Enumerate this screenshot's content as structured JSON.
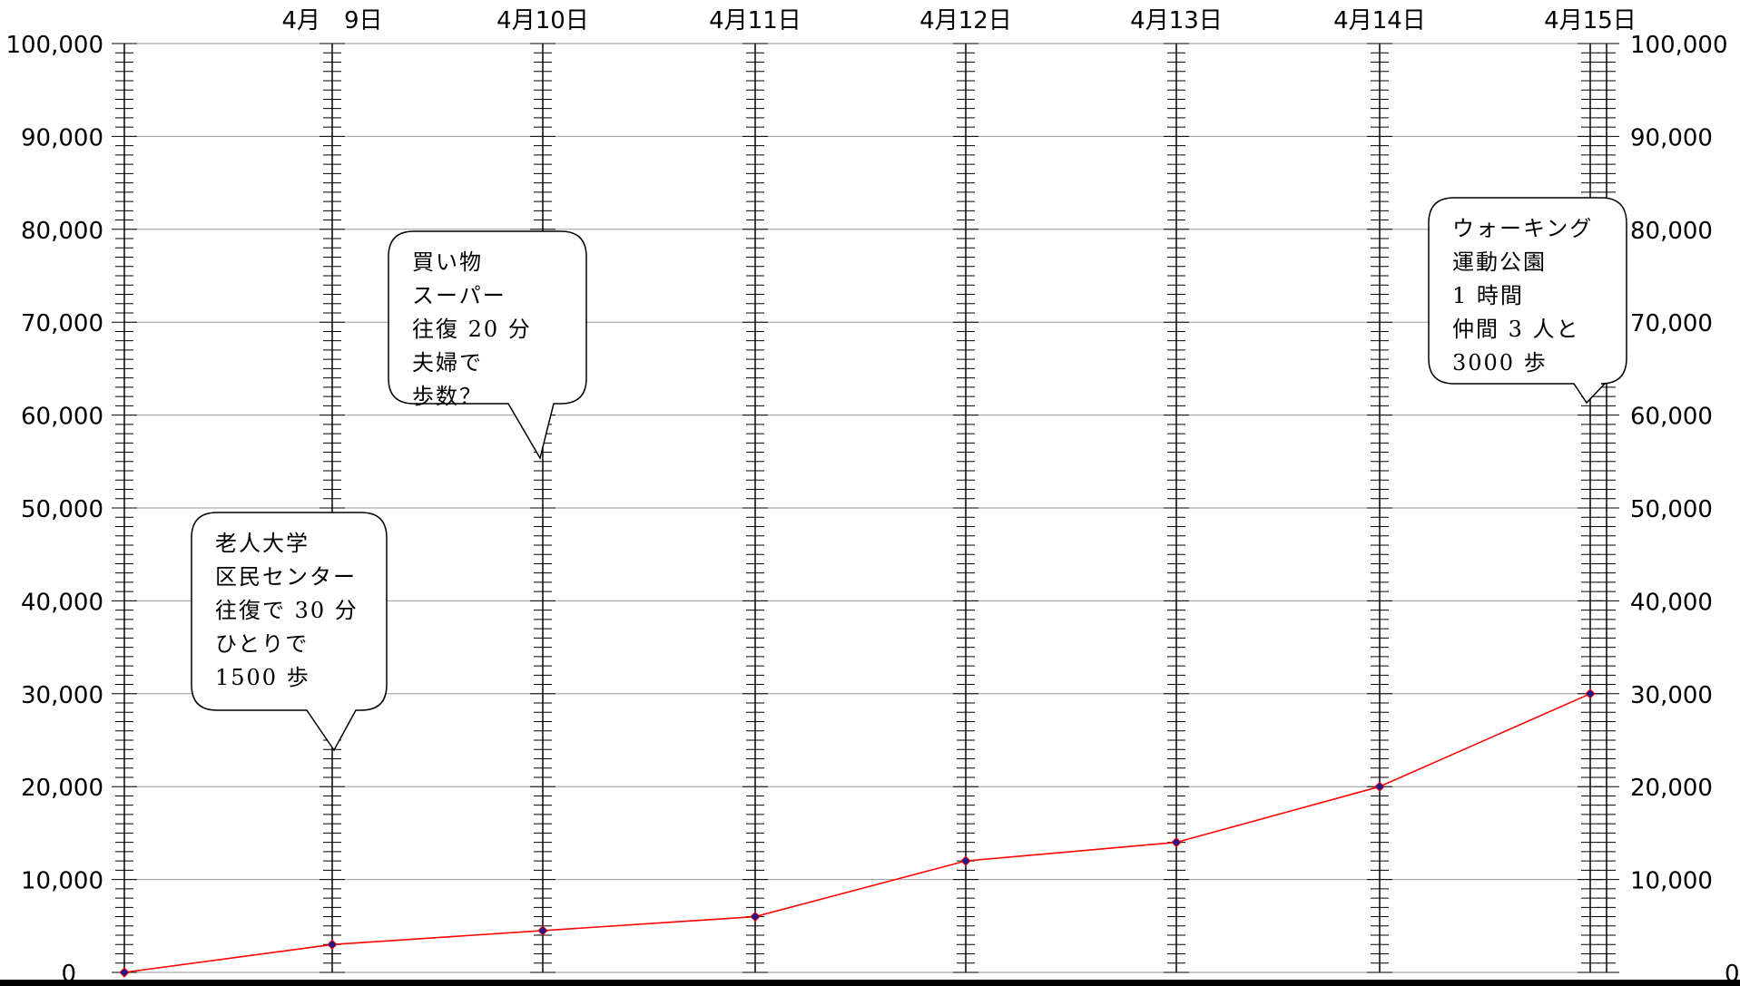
{
  "chart_data": {
    "type": "line",
    "x": [
      "4月　9日",
      "4月10日",
      "4月11日",
      "4月12日",
      "4月13日",
      "4月14日",
      "4月15日"
    ],
    "x_labels": [
      "4月　9日",
      "4月10日",
      "4月11日",
      "4月12日",
      "4月13日",
      "4月14日",
      "4月15日"
    ],
    "series": [
      {
        "color": "#ff0000",
        "marker_color": "#1a1a8c",
        "points": [
          {
            "x": "start",
            "y": 0
          },
          {
            "x": "4月　9日",
            "y": 3000
          },
          {
            "x": "4月10日",
            "y": 4500
          },
          {
            "x": "4月11日",
            "y": 6000
          },
          {
            "x": "4月12日",
            "y": 12000
          },
          {
            "x": "4月13日",
            "y": 14000
          },
          {
            "x": "4月14日",
            "y": 20000
          },
          {
            "x": "4月15日",
            "y": 30000
          }
        ]
      }
    ],
    "ylim": [
      0,
      100000
    ],
    "y_ticks": [
      0,
      10000,
      20000,
      30000,
      40000,
      50000,
      60000,
      70000,
      80000,
      90000,
      100000
    ],
    "y_tick_labels_left": [
      "0",
      "10,000",
      "20,000",
      "30,000",
      "40,000",
      "50,000",
      "60,000",
      "70,000",
      "80,000",
      "90,000",
      "100,000"
    ],
    "y_tick_labels_right": [
      "0",
      "10,000",
      "20,000",
      "30,000",
      "40,000",
      "50,000",
      "60,000",
      "70,000",
      "80,000",
      "90,000",
      "100,000"
    ],
    "grid": true,
    "title": "",
    "xlabel": "",
    "ylabel": "",
    "annotations": [
      {
        "anchor_date": "4月　9日",
        "lines": [
          "老人大学",
          "区民センター",
          "往復で 30 分",
          "ひとりで",
          "1500 歩"
        ]
      },
      {
        "anchor_date": "4月10日",
        "lines": [
          "買い物",
          "スーパー",
          "往復 20 分",
          "夫婦で",
          "歩数？"
        ]
      },
      {
        "anchor_date": "4月15日",
        "lines": [
          "ウォーキング",
          "運動公園",
          "1 時間",
          "仲間 3 人と",
          "3000 歩"
        ]
      }
    ]
  }
}
